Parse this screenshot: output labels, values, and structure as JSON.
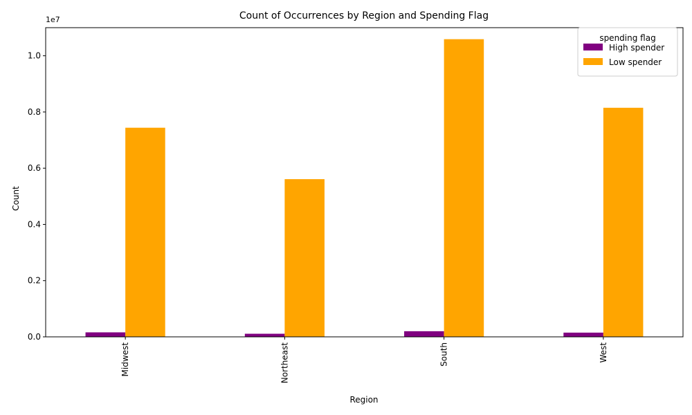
{
  "chart_data": {
    "type": "bar",
    "title": "Count of Occurrences by Region and Spending Flag",
    "xlabel": "Region",
    "ylabel": "Count",
    "y_offset_label": "1e7",
    "categories": [
      "Midwest",
      "Northeast",
      "South",
      "West"
    ],
    "series": [
      {
        "name": "High spender",
        "color": "#800080",
        "values": [
          160000,
          110000,
          200000,
          150000
        ]
      },
      {
        "name": "Low spender",
        "color": "#FFA500",
        "values": [
          7440000,
          5610000,
          10590000,
          8150000
        ]
      }
    ],
    "y_ticks": [
      {
        "value": 0,
        "label": "0.0"
      },
      {
        "value": 2000000,
        "label": "0.2"
      },
      {
        "value": 4000000,
        "label": "0.4"
      },
      {
        "value": 6000000,
        "label": "0.6"
      },
      {
        "value": 8000000,
        "label": "0.8"
      },
      {
        "value": 10000000,
        "label": "1.0"
      }
    ],
    "ylim": [
      0,
      11000000
    ],
    "legend": {
      "title": "spending flag",
      "placement": "top-right"
    },
    "grid": false
  }
}
